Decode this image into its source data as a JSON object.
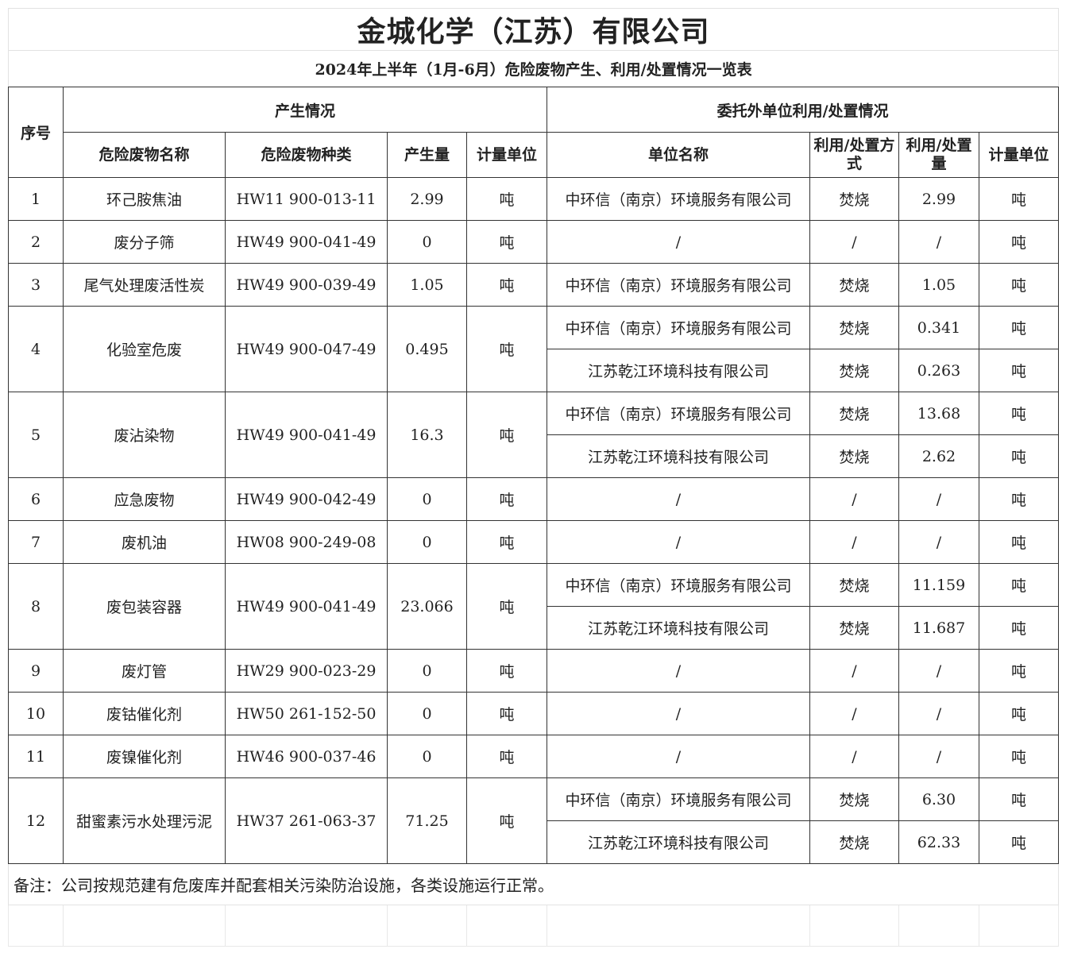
{
  "title": "金城化学（江苏）有限公司",
  "subtitle": "2024年上半年（1月-6月）危险废物产生、利用/处置情况一览表",
  "headers": {
    "no": "序号",
    "generation": "产生情况",
    "entrusted": "委托外单位利用/处置情况",
    "waste_name": "危险废物名称",
    "waste_type": "危险废物种类",
    "amount": "产生量",
    "unit": "计量单位",
    "company": "单位名称",
    "method": "利用/处置方式",
    "disposal_amount": "利用/处置量",
    "disposal_unit": "计量单位"
  },
  "rows": [
    {
      "no": "1",
      "name": "环己胺焦油",
      "type": "HW11 900-013-11",
      "amount": "2.99",
      "unit": "吨",
      "disposals": [
        {
          "company": "中环信（南京）环境服务有限公司",
          "method": "焚烧",
          "amount": "2.99",
          "unit": "吨"
        }
      ]
    },
    {
      "no": "2",
      "name": "废分子筛",
      "type": "HW49 900-041-49",
      "amount": "0",
      "unit": "吨",
      "disposals": [
        {
          "company": "/",
          "method": "/",
          "amount": "/",
          "unit": "吨"
        }
      ]
    },
    {
      "no": "3",
      "name": "尾气处理废活性炭",
      "type": "HW49 900-039-49",
      "amount": "1.05",
      "unit": "吨",
      "disposals": [
        {
          "company": "中环信（南京）环境服务有限公司",
          "method": "焚烧",
          "amount": "1.05",
          "unit": "吨"
        }
      ]
    },
    {
      "no": "4",
      "name": "化验室危废",
      "type": "HW49 900-047-49",
      "amount": "0.495",
      "unit": "吨",
      "disposals": [
        {
          "company": "中环信（南京）环境服务有限公司",
          "method": "焚烧",
          "amount": "0.341",
          "unit": "吨"
        },
        {
          "company": "江苏乾江环境科技有限公司",
          "method": "焚烧",
          "amount": "0.263",
          "unit": "吨"
        }
      ]
    },
    {
      "no": "5",
      "name": "废沾染物",
      "type": "HW49 900-041-49",
      "amount": "16.3",
      "unit": "吨",
      "disposals": [
        {
          "company": "中环信（南京）环境服务有限公司",
          "method": "焚烧",
          "amount": "13.68",
          "unit": "吨"
        },
        {
          "company": "江苏乾江环境科技有限公司",
          "method": "焚烧",
          "amount": "2.62",
          "unit": "吨"
        }
      ]
    },
    {
      "no": "6",
      "name": "应急废物",
      "type": "HW49 900-042-49",
      "amount": "0",
      "unit": "吨",
      "disposals": [
        {
          "company": "/",
          "method": "/",
          "amount": "/",
          "unit": "吨"
        }
      ]
    },
    {
      "no": "7",
      "name": "废机油",
      "type": "HW08 900-249-08",
      "amount": "0",
      "unit": "吨",
      "disposals": [
        {
          "company": "/",
          "method": "/",
          "amount": "/",
          "unit": "吨"
        }
      ]
    },
    {
      "no": "8",
      "name": "废包装容器",
      "type": "HW49 900-041-49",
      "amount": "23.066",
      "unit": "吨",
      "disposals": [
        {
          "company": "中环信（南京）环境服务有限公司",
          "method": "焚烧",
          "amount": "11.159",
          "unit": "吨"
        },
        {
          "company": "江苏乾江环境科技有限公司",
          "method": "焚烧",
          "amount": "11.687",
          "unit": "吨"
        }
      ]
    },
    {
      "no": "9",
      "name": "废灯管",
      "type": "HW29 900-023-29",
      "amount": "0",
      "unit": "吨",
      "disposals": [
        {
          "company": "/",
          "method": "/",
          "amount": "/",
          "unit": "吨"
        }
      ]
    },
    {
      "no": "10",
      "name": "废钴催化剂",
      "type": "HW50 261-152-50",
      "amount": "0",
      "unit": "吨",
      "disposals": [
        {
          "company": "/",
          "method": "/",
          "amount": "/",
          "unit": "吨"
        }
      ]
    },
    {
      "no": "11",
      "name": "废镍催化剂",
      "type": "HW46 900-037-46",
      "amount": "0",
      "unit": "吨",
      "disposals": [
        {
          "company": "/",
          "method": "/",
          "amount": "/",
          "unit": "吨"
        }
      ]
    },
    {
      "no": "12",
      "name": "甜蜜素污水处理污泥",
      "type": "HW37 261-063-37",
      "amount": "71.25",
      "unit": "吨",
      "disposals": [
        {
          "company": "中环信（南京）环境服务有限公司",
          "method": "焚烧",
          "amount": "6.30",
          "unit": "吨"
        },
        {
          "company": "江苏乾江环境科技有限公司",
          "method": "焚烧",
          "amount": "62.33",
          "unit": "吨"
        }
      ]
    }
  ],
  "remark": "备注：公司按规范建有危废库并配套相关污染防治设施，各类设施运行正常。"
}
